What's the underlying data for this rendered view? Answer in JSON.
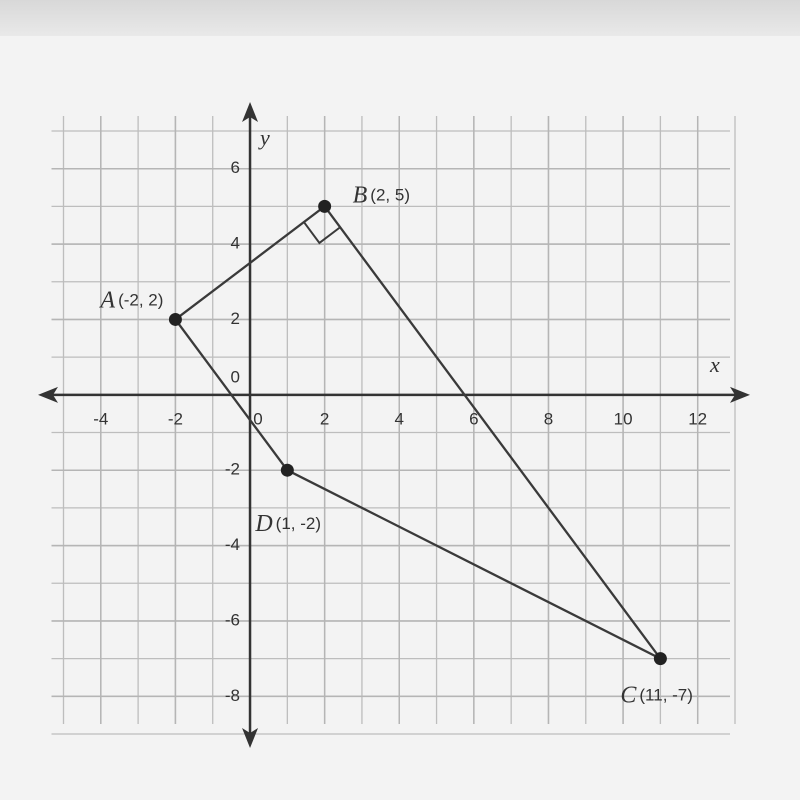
{
  "chart_data": {
    "type": "polygon",
    "x_label": "x",
    "y_label": "y",
    "xlim": [
      -5,
      13
    ],
    "ylim": [
      -9,
      7
    ],
    "xticks": [
      -4,
      -2,
      0,
      2,
      4,
      6,
      8,
      10,
      12
    ],
    "yticks": [
      -8,
      -6,
      -4,
      -2,
      0,
      2,
      4,
      6
    ],
    "grid": true,
    "color": "#3a3a3a",
    "points": [
      {
        "name": "A",
        "label": "(-2, 2)",
        "x": -2,
        "y": 2
      },
      {
        "name": "B",
        "label": "(2, 5)",
        "x": 2,
        "y": 5
      },
      {
        "name": "C",
        "label": "(11, -7)",
        "x": 11,
        "y": -7
      },
      {
        "name": "D",
        "label": "(1, -2)",
        "x": 1,
        "y": -2
      }
    ]
  }
}
